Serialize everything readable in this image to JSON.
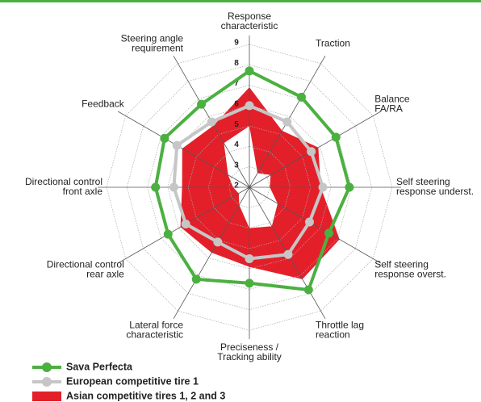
{
  "chart_data": {
    "type": "radar",
    "categories": [
      [
        "Response",
        "characteristic"
      ],
      [
        "Traction"
      ],
      [
        "Balance",
        "FA/RA"
      ],
      [
        "Self steering",
        "response underst."
      ],
      [
        "Self steering",
        "response overst."
      ],
      [
        "Throttle lag",
        "reaction"
      ],
      [
        "Preciseness /",
        "Tracking ability"
      ],
      [
        "Lateral force",
        "characteristic"
      ],
      [
        "Directional control",
        "rear axle"
      ],
      [
        "Directional control",
        "front axle"
      ],
      [
        "Feedback"
      ],
      [
        "Steering angle",
        "requirement"
      ]
    ],
    "rlim": [
      2,
      9
    ],
    "rticks": [
      2,
      3,
      4,
      5,
      6,
      7,
      8,
      9
    ],
    "grid": true,
    "series": [
      {
        "name": "Asian competitive tires 1, 2 and 3",
        "color": "#e3202a",
        "style": "band",
        "values": [
          6.9,
          5.2,
          5.9,
          5.5,
          7.1,
          7.2,
          5.9,
          5.7,
          5.9,
          5.3,
          5.8,
          5.5
        ],
        "low_values": [
          5.0,
          2.8,
          3.2,
          3.0,
          3.6,
          4.2,
          4.0,
          3.0,
          2.6,
          2.8,
          3.2,
          4.5
        ]
      },
      {
        "name": "European competitive tire 1",
        "color": "#c6c6c6",
        "style": "line",
        "values": [
          6.0,
          5.7,
          5.5,
          5.6,
          5.4,
          5.8,
          5.5,
          5.1,
          5.6,
          5.7,
          6.1,
          5.7
        ]
      },
      {
        "name": "Sava Perfecta",
        "color": "#4bb040",
        "style": "line",
        "values": [
          7.7,
          7.1,
          6.9,
          6.9,
          6.5,
          7.8,
          6.7,
          7.2,
          6.6,
          6.6,
          6.8,
          6.7
        ]
      }
    ],
    "legend_order": [
      2,
      1,
      0
    ]
  }
}
